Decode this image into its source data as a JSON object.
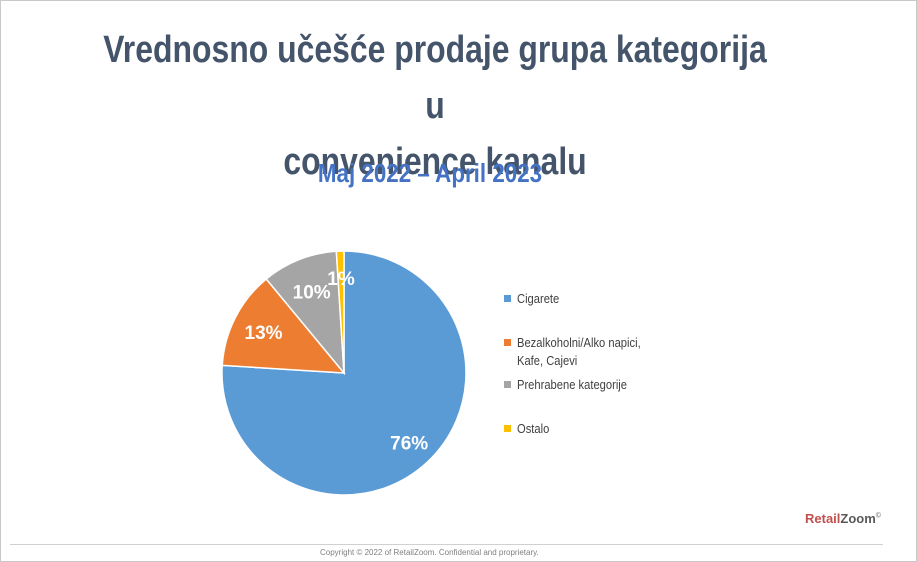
{
  "slide": {
    "title_line1": "Vrednosno učešće prodaje grupa kategorija u",
    "title_line2": "convenience kanalu",
    "subtitle": "Maj 2022 – April 2023",
    "brand_part1": "Retail",
    "brand_part2": "Zoom",
    "brand_mark": "©",
    "footer": "Copyright © 2022 of RetailZoom. Confidential and proprietary."
  },
  "chart_data": {
    "type": "pie",
    "categories": [
      "Cigarete",
      "Bezalkoholni/Alko napici, Kafe, Cajevi",
      "Prehrabene kategorije",
      "Ostalo"
    ],
    "values": [
      76,
      13,
      10,
      1
    ],
    "labels": [
      "76%",
      "13%",
      "10%",
      "1%"
    ],
    "colors": [
      "#5b9bd5",
      "#ed7d31",
      "#a5a5a5",
      "#ffc000"
    ],
    "legend_position": "right"
  },
  "legend": {
    "items": [
      {
        "line1": "Cigarete",
        "line2": "",
        "color": "#5b9bd5"
      },
      {
        "line1": "Bezalkoholni/Alko napici,",
        "line2": "Kafe, Cajevi",
        "color": "#ed7d31"
      },
      {
        "line1": "Prehrabene kategorije",
        "line2": "",
        "color": "#a5a5a5"
      },
      {
        "line1": "Ostalo",
        "line2": "",
        "color": "#ffc000"
      }
    ]
  }
}
